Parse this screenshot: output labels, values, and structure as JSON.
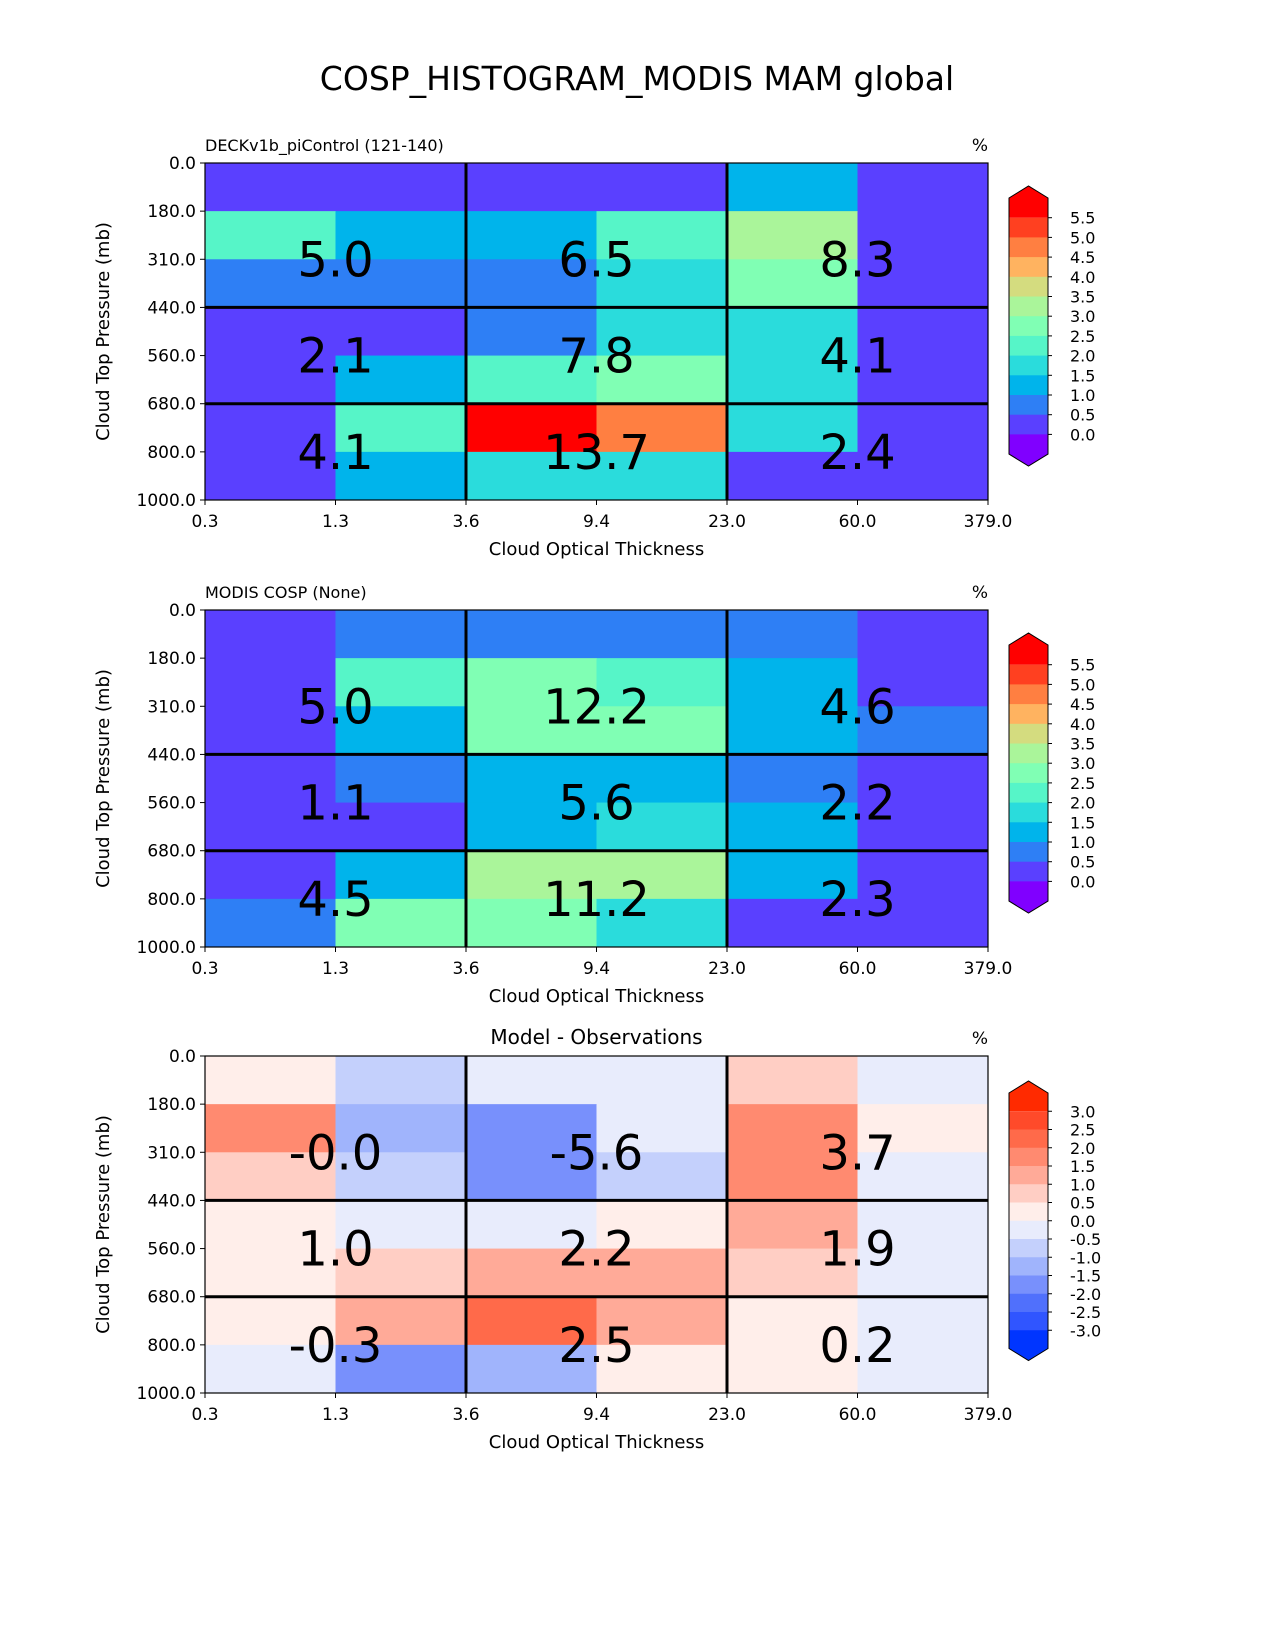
{
  "title": "COSP_HISTOGRAM_MODIS MAM global",
  "chart_data": [
    {
      "type": "heatmap",
      "title_left": "DECKv1b_piControl (121-140)",
      "title_center": "",
      "units": "%",
      "xlabel": "Cloud Optical Thickness",
      "ylabel": "Cloud Top Pressure (mb)",
      "x_ticks": [
        "0.3",
        "1.3",
        "3.6",
        "9.4",
        "23.0",
        "60.0",
        "379.0"
      ],
      "y_ticks": [
        "0.0",
        "180.0",
        "310.0",
        "440.0",
        "560.0",
        "680.0",
        "800.0",
        "1000.0"
      ],
      "values": [
        [
          0.25,
          0.25,
          0.25,
          0.25,
          1.25,
          0.25
        ],
        [
          2.25,
          1.25,
          1.25,
          2.25,
          3.25,
          0.25
        ],
        [
          0.75,
          0.75,
          0.75,
          1.75,
          2.75,
          0.25
        ],
        [
          0.25,
          0.25,
          0.75,
          1.75,
          1.75,
          0.25
        ],
        [
          0.25,
          1.25,
          2.25,
          2.75,
          1.75,
          0.25
        ],
        [
          0.25,
          2.25,
          5.8,
          4.75,
          1.75,
          0.25
        ],
        [
          0.25,
          1.25,
          1.75,
          1.75,
          0.25,
          0.25
        ]
      ],
      "box_labels": [
        [
          "5.0",
          "6.5",
          "8.3"
        ],
        [
          "2.1",
          "7.8",
          "4.1"
        ],
        [
          "4.1",
          "13.7",
          "2.4"
        ]
      ],
      "colorbar": {
        "levels": [
          0.0,
          0.5,
          1.0,
          1.5,
          2.0,
          2.5,
          3.0,
          3.5,
          4.0,
          4.5,
          5.0,
          5.5
        ],
        "tick_labels": [
          "5.5",
          "5.0",
          "4.5",
          "4.0",
          "3.5",
          "3.0",
          "2.5",
          "2.0",
          "1.5",
          "1.0",
          "0.5",
          "0.0"
        ],
        "colors": [
          "#ff0000",
          "#ff4020",
          "#ff7f41",
          "#ffb360",
          "#d4dc7f",
          "#aaf59a",
          "#80ffb4",
          "#56f5c8",
          "#2adcdc",
          "#00b4eb",
          "#2e7ff5",
          "#5a40ff",
          "#8000ff"
        ]
      }
    },
    {
      "type": "heatmap",
      "title_left": "MODIS COSP (None)",
      "title_center": "",
      "units": "%",
      "xlabel": "Cloud Optical Thickness",
      "ylabel": "Cloud Top Pressure (mb)",
      "x_ticks": [
        "0.3",
        "1.3",
        "3.6",
        "9.4",
        "23.0",
        "60.0",
        "379.0"
      ],
      "y_ticks": [
        "0.0",
        "180.0",
        "310.0",
        "440.0",
        "560.0",
        "680.0",
        "800.0",
        "1000.0"
      ],
      "values": [
        [
          0.25,
          0.75,
          0.75,
          0.75,
          0.75,
          0.25
        ],
        [
          0.25,
          2.25,
          2.75,
          2.25,
          1.25,
          0.25
        ],
        [
          0.25,
          1.25,
          2.75,
          2.75,
          1.25,
          0.75
        ],
        [
          0.25,
          0.75,
          1.25,
          1.25,
          0.75,
          0.25
        ],
        [
          0.25,
          0.25,
          1.25,
          1.75,
          1.25,
          0.25
        ],
        [
          0.25,
          1.25,
          3.25,
          3.25,
          1.25,
          0.25
        ],
        [
          0.75,
          2.75,
          2.75,
          1.75,
          0.25,
          0.25
        ]
      ],
      "box_labels": [
        [
          "5.0",
          "12.2",
          "4.6"
        ],
        [
          "1.1",
          "5.6",
          "2.2"
        ],
        [
          "4.5",
          "11.2",
          "2.3"
        ]
      ],
      "colorbar": {
        "levels": [
          0.0,
          0.5,
          1.0,
          1.5,
          2.0,
          2.5,
          3.0,
          3.5,
          4.0,
          4.5,
          5.0,
          5.5
        ],
        "tick_labels": [
          "5.5",
          "5.0",
          "4.5",
          "4.0",
          "3.5",
          "3.0",
          "2.5",
          "2.0",
          "1.5",
          "1.0",
          "0.5",
          "0.0"
        ],
        "colors": [
          "#ff0000",
          "#ff4020",
          "#ff7f41",
          "#ffb360",
          "#d4dc7f",
          "#aaf59a",
          "#80ffb4",
          "#56f5c8",
          "#2adcdc",
          "#00b4eb",
          "#2e7ff5",
          "#5a40ff",
          "#8000ff"
        ]
      }
    },
    {
      "type": "heatmap",
      "title_left": "",
      "title_center": "Model - Observations",
      "units": "%",
      "xlabel": "Cloud Optical Thickness",
      "ylabel": "Cloud Top Pressure (mb)",
      "x_ticks": [
        "0.3",
        "1.3",
        "3.6",
        "9.4",
        "23.0",
        "60.0",
        "379.0"
      ],
      "y_ticks": [
        "0.0",
        "180.0",
        "310.0",
        "440.0",
        "560.0",
        "680.0",
        "800.0",
        "1000.0"
      ],
      "values": [
        [
          0.25,
          -0.75,
          -0.25,
          -0.25,
          0.75,
          -0.25
        ],
        [
          1.75,
          -1.25,
          -1.75,
          -0.25,
          1.75,
          0.25
        ],
        [
          0.75,
          -0.75,
          -1.75,
          -0.75,
          1.75,
          -0.25
        ],
        [
          0.25,
          -0.25,
          -0.25,
          0.25,
          1.25,
          -0.25
        ],
        [
          0.25,
          0.75,
          1.25,
          1.25,
          0.75,
          -0.25
        ],
        [
          0.25,
          1.25,
          2.25,
          1.25,
          0.25,
          -0.25
        ],
        [
          -0.25,
          -1.75,
          -1.25,
          0.25,
          0.25,
          -0.25
        ]
      ],
      "box_labels": [
        [
          "-0.0",
          "-5.6",
          "3.7"
        ],
        [
          "1.0",
          "2.2",
          "1.9"
        ],
        [
          "-0.3",
          "2.5",
          "0.2"
        ]
      ],
      "colorbar": {
        "levels": [
          -3.0,
          -2.5,
          -2.0,
          -1.5,
          -1.0,
          -0.5,
          0.0,
          0.5,
          1.0,
          1.5,
          2.0,
          2.5,
          3.0
        ],
        "tick_labels": [
          "3.0",
          "2.5",
          "2.0",
          "1.5",
          "1.0",
          "0.5",
          "0.0",
          "-0.5",
          "-1.0",
          "-1.5",
          "-2.0",
          "-2.5",
          "-3.0"
        ],
        "colors": [
          "#ff2a00",
          "#ff4a2a",
          "#ff6a4a",
          "#ff8a70",
          "#ffaa98",
          "#ffcec4",
          "#ffeeea",
          "#e8ecfc",
          "#c4d0fc",
          "#a0b4fc",
          "#7890fc",
          "#5070fc",
          "#3055ff",
          "#0035ff"
        ]
      }
    }
  ]
}
